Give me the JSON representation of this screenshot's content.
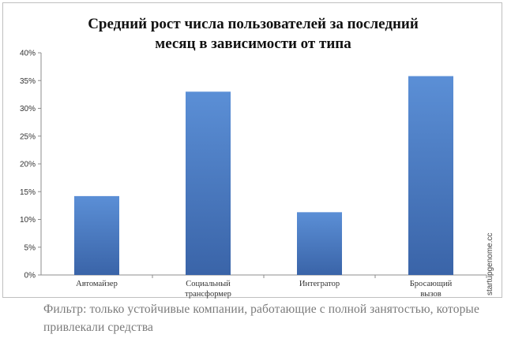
{
  "chart_data": {
    "type": "bar",
    "title": "Средний рост числа пользователей за последний месяц в зависимости от типа",
    "title_lines": [
      "Средний рост числа пользователей за последний",
      "месяц в зависимости от типа"
    ],
    "categories": [
      "Автомайзер",
      "Социальный трансформер",
      "Интегратор",
      "Бросающий вызов"
    ],
    "category_lines": [
      [
        "Автомайзер"
      ],
      [
        "Социальный",
        "трансформер"
      ],
      [
        "Интегратор"
      ],
      [
        "Бросающий",
        "вызов"
      ]
    ],
    "values": [
      14.2,
      33.0,
      11.3,
      35.8
    ],
    "unit": "%",
    "ylim": [
      0,
      40
    ],
    "yticks": [
      0,
      5,
      10,
      15,
      20,
      25,
      30,
      35,
      40
    ],
    "ytick_labels": [
      "0%",
      "5%",
      "10%",
      "15%",
      "20%",
      "25%",
      "30%",
      "35%",
      "40%"
    ],
    "xlabel": "",
    "ylabel": "",
    "grid": false,
    "legend": "none",
    "bar_color_top": "#5b8fd6",
    "bar_color_bottom": "#3a64a8"
  },
  "watermark": "startupgenome.cc",
  "caption": "Фильтр: только устойчивые компании, работающие с полной занятостью,  которые привлекали средства"
}
